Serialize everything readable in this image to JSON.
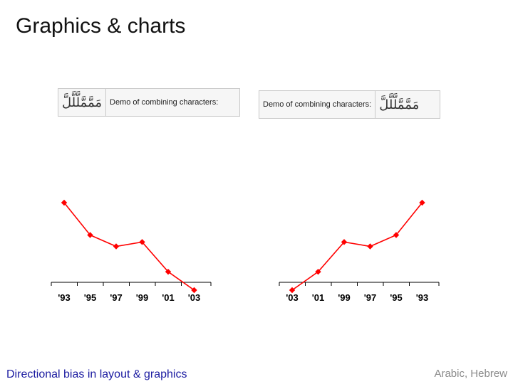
{
  "slide": {
    "title": "Graphics & charts",
    "footer_left": "Directional bias in layout & graphics",
    "footer_right": "Arabic, Hebrew"
  },
  "demo_boxes": [
    {
      "arabic_text": "مَمَّمَّلَّلَّلَّ",
      "label": "Demo of combining characters:"
    },
    {
      "arabic_text": "مَمَّمَّلَّلَّلَّ",
      "label": "Demo of combining characters:"
    }
  ],
  "colors": {
    "line": "#ff0000",
    "title": "#111111",
    "footer_left": "#1a1aa0",
    "footer_right": "#8a8a8a"
  },
  "chart_data": [
    {
      "type": "line",
      "direction": "ltr",
      "categories": [
        "'93",
        "'95",
        "'97",
        "'99",
        "'01",
        "'03"
      ],
      "values": [
        100,
        63,
        50,
        55,
        21,
        0
      ],
      "title": "",
      "xlabel": "",
      "ylabel": "",
      "ylim": [
        0,
        100
      ],
      "grid": false
    },
    {
      "type": "line",
      "direction": "rtl",
      "categories": [
        "'03",
        "'01",
        "'99",
        "'97",
        "'95",
        "'93"
      ],
      "values": [
        0,
        21,
        55,
        50,
        63,
        100
      ],
      "title": "",
      "xlabel": "",
      "ylabel": "",
      "ylim": [
        0,
        100
      ],
      "grid": false
    }
  ]
}
